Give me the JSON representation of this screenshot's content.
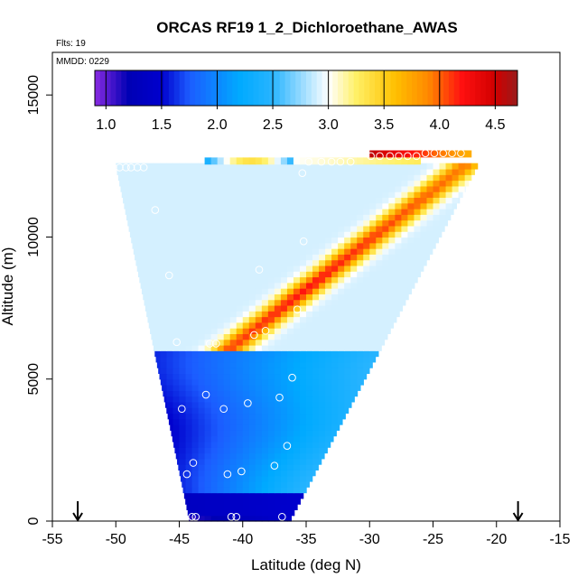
{
  "chart_data": {
    "type": "heatmap",
    "title": "ORCAS RF19 1_2_Dichloroethane_AWAS",
    "notes": [
      "Flts: 19",
      "MMDD: 0229"
    ],
    "xlabel": "Latitude (deg N)",
    "ylabel": "Altitude (m)",
    "xlim": [
      -55,
      -15
    ],
    "ylim": [
      0,
      16500
    ],
    "x_ticks": [
      -55,
      -50,
      -45,
      -40,
      -35,
      -30,
      -25,
      -20,
      -15
    ],
    "y_ticks": [
      0,
      5000,
      10000,
      15000
    ],
    "colorbar": {
      "range": [
        0.9,
        4.7
      ],
      "ticks": [
        1.0,
        1.5,
        2.0,
        2.5,
        3.0,
        3.5,
        4.0,
        4.5
      ],
      "tick_labels": [
        "1.0",
        "1.5",
        "2.0",
        "2.5",
        "3.0",
        "3.5",
        "4.0",
        "4.5"
      ],
      "stops": [
        {
          "v": 0.9,
          "c": "#8a2be2"
        },
        {
          "v": 1.2,
          "c": "#0000b4"
        },
        {
          "v": 1.5,
          "c": "#0000cd"
        },
        {
          "v": 1.75,
          "c": "#1c5cff"
        },
        {
          "v": 2.2,
          "c": "#00aaff"
        },
        {
          "v": 2.5,
          "c": "#28b4ff"
        },
        {
          "v": 3.0,
          "c": "#ffffff"
        },
        {
          "v": 3.25,
          "c": "#fff066"
        },
        {
          "v": 3.6,
          "c": "#ffc000"
        },
        {
          "v": 3.9,
          "c": "#ff8800"
        },
        {
          "v": 4.2,
          "c": "#ff1010"
        },
        {
          "v": 4.5,
          "c": "#d00000"
        },
        {
          "v": 4.7,
          "c": "#9a1a1a"
        }
      ]
    },
    "curtain_edges": [
      {
        "alt": 0,
        "left": -44.2,
        "right": -36.3
      },
      {
        "alt": 12500,
        "left": -50.0,
        "right": -21.5
      }
    ],
    "top_strips": [
      {
        "alt_min": 12550,
        "alt_max": 12800,
        "lat_min": -43.0,
        "lat_max": -26.0,
        "value_profile": "warm"
      },
      {
        "alt_min": 12800,
        "alt_max": 13050,
        "lat_min": -30.0,
        "lat_max": -22.0,
        "value_profile": "hot"
      }
    ],
    "samples": [
      {
        "lat": -50.2,
        "alt": 12450
      },
      {
        "lat": -49.7,
        "alt": 12450
      },
      {
        "lat": -49.2,
        "alt": 12450
      },
      {
        "lat": -48.8,
        "alt": 12450
      },
      {
        "lat": -48.3,
        "alt": 12450
      },
      {
        "lat": -47.8,
        "alt": 12450
      },
      {
        "lat": -35.3,
        "alt": 12250
      },
      {
        "lat": -34.8,
        "alt": 12650
      },
      {
        "lat": -33.8,
        "alt": 12650
      },
      {
        "lat": -33.0,
        "alt": 12650
      },
      {
        "lat": -32.3,
        "alt": 12650
      },
      {
        "lat": -31.5,
        "alt": 12650
      },
      {
        "lat": -29.9,
        "alt": 12850
      },
      {
        "lat": -29.2,
        "alt": 12850
      },
      {
        "lat": -28.4,
        "alt": 12850
      },
      {
        "lat": -27.7,
        "alt": 12850
      },
      {
        "lat": -27.0,
        "alt": 12850
      },
      {
        "lat": -26.3,
        "alt": 12850
      },
      {
        "lat": -25.6,
        "alt": 12950
      },
      {
        "lat": -24.9,
        "alt": 12950
      },
      {
        "lat": -24.2,
        "alt": 12950
      },
      {
        "lat": -23.5,
        "alt": 12950
      },
      {
        "lat": -22.8,
        "alt": 12950
      },
      {
        "lat": -46.9,
        "alt": 10950
      },
      {
        "lat": -35.2,
        "alt": 9850
      },
      {
        "lat": -38.7,
        "alt": 8850
      },
      {
        "lat": -45.8,
        "alt": 8650
      },
      {
        "lat": -35.7,
        "alt": 7450
      },
      {
        "lat": -38.2,
        "alt": 6700
      },
      {
        "lat": -39.1,
        "alt": 6550
      },
      {
        "lat": -45.2,
        "alt": 6300
      },
      {
        "lat": -42.6,
        "alt": 6250
      },
      {
        "lat": -42.1,
        "alt": 6250
      },
      {
        "lat": -36.1,
        "alt": 5050
      },
      {
        "lat": -42.9,
        "alt": 4450
      },
      {
        "lat": -37.1,
        "alt": 4350
      },
      {
        "lat": -39.6,
        "alt": 4150
      },
      {
        "lat": -44.8,
        "alt": 3950
      },
      {
        "lat": -41.5,
        "alt": 3950
      },
      {
        "lat": -36.5,
        "alt": 2650
      },
      {
        "lat": -43.9,
        "alt": 2050
      },
      {
        "lat": -37.5,
        "alt": 1950
      },
      {
        "lat": -40.1,
        "alt": 1750
      },
      {
        "lat": -44.4,
        "alt": 1650
      },
      {
        "lat": -41.2,
        "alt": 1650
      },
      {
        "lat": -44.0,
        "alt": 150
      },
      {
        "lat": -43.7,
        "alt": 150
      },
      {
        "lat": -40.9,
        "alt": 150
      },
      {
        "lat": -40.5,
        "alt": 150
      },
      {
        "lat": -36.9,
        "alt": 150
      }
    ],
    "markers": [
      {
        "lat": -53.0,
        "symbol": "down-arrow"
      },
      {
        "lat": -18.3,
        "symbol": "down-arrow"
      }
    ]
  }
}
